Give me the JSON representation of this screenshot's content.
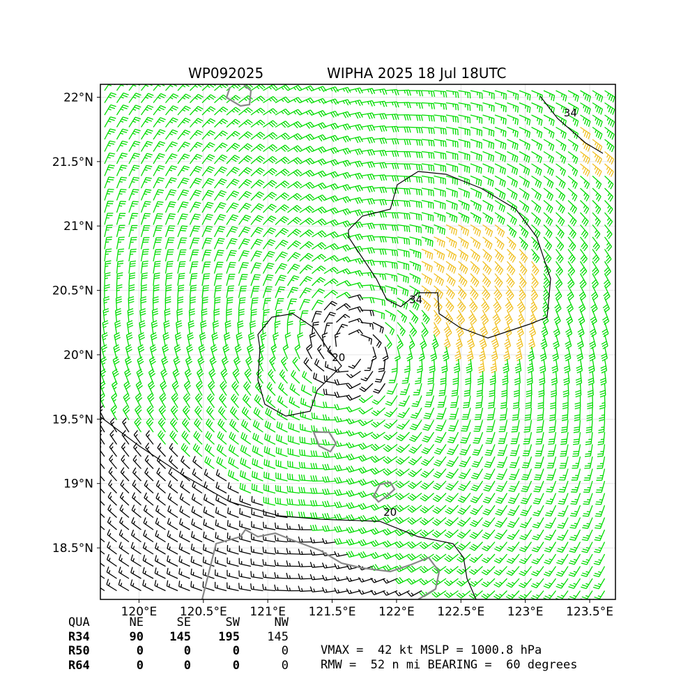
{
  "header": {
    "storm_id": "WP092025",
    "storm_title": "WIPHA 2025 18 Jul 18UTC"
  },
  "chart_data": {
    "type": "wind-barb-map",
    "storm_center": {
      "lon": 121.65,
      "lat": 20.05
    },
    "xlim": [
      119.7,
      123.7
    ],
    "ylim": [
      18.1,
      22.1
    ],
    "x_ticks": [
      {
        "value": 120,
        "label": "120°E"
      },
      {
        "value": 120.5,
        "label": "120.5°E"
      },
      {
        "value": 121,
        "label": "121°E"
      },
      {
        "value": 121.5,
        "label": "121.5°E"
      },
      {
        "value": 122,
        "label": "122°E"
      },
      {
        "value": 122.5,
        "label": "122.5°E"
      },
      {
        "value": 123,
        "label": "123°E"
      },
      {
        "value": 123.5,
        "label": "123.5°E"
      }
    ],
    "y_ticks": [
      {
        "value": 18.5,
        "label": "18.5°N"
      },
      {
        "value": 19,
        "label": "19°N"
      },
      {
        "value": 19.5,
        "label": "19.5°N"
      },
      {
        "value": 20,
        "label": "20°N"
      },
      {
        "value": 20.5,
        "label": "20.5°N"
      },
      {
        "value": 21,
        "label": "21°N"
      },
      {
        "value": 21.5,
        "label": "21.5°N"
      },
      {
        "value": 22,
        "label": "22°N"
      }
    ],
    "grid": true,
    "barb_colors": {
      "below_20": "#000000",
      "20_to_34": "#00dd00",
      "above_34": "#f0c020"
    },
    "contour_labels": [
      {
        "text": "34",
        "lon": 122.15,
        "lat": 20.4
      },
      {
        "text": "34",
        "lon": 123.35,
        "lat": 21.85
      },
      {
        "text": "20",
        "lon": 121.95,
        "lat": 18.75
      },
      {
        "text": "20",
        "lon": 121.55,
        "lat": 19.95
      }
    ],
    "wind_radii": {
      "columns": [
        "QUA",
        "NE",
        "SE",
        "SW",
        "NW"
      ],
      "rows": [
        {
          "label": "R34",
          "values": [
            "90",
            "145",
            "195",
            "145"
          ]
        },
        {
          "label": "R50",
          "values": [
            "0",
            "0",
            "0",
            "0"
          ]
        },
        {
          "label": "R64",
          "values": [
            "0",
            "0",
            "0",
            "0"
          ]
        }
      ]
    },
    "vmax_line": "VMAX =  42 kt MSLP = 1000.8 hPa",
    "rmw_line": "RMW =  52 n mi BEARING =  60 degrees"
  }
}
